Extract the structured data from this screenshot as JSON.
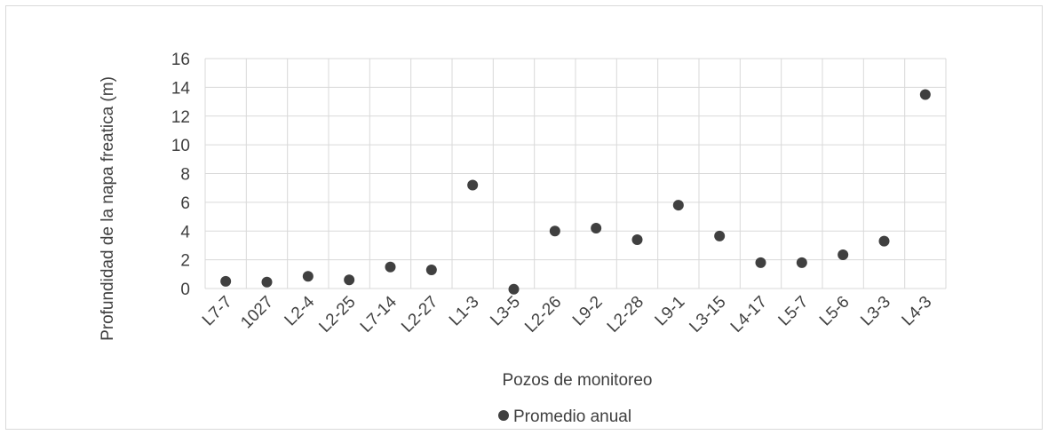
{
  "chart_data": {
    "type": "scatter",
    "title": "",
    "xlabel": "Pozos de monitoreo",
    "ylabel": "Profundidad de la napa freatica (m)",
    "ylim": [
      0,
      16
    ],
    "yticks": [
      0,
      2,
      4,
      6,
      8,
      10,
      12,
      14,
      16
    ],
    "grid": true,
    "legend_position": "bottom",
    "categories": [
      "L7-7",
      "1027",
      "L2-4",
      "L2-25",
      "L7-14",
      "L2-27",
      "L1-3",
      "L3-5",
      "L2-26",
      "L9-2",
      "L2-28",
      "L9-1",
      "L3-15",
      "L4-17",
      "L5-7",
      "L5-6",
      "L3-3",
      "L4-3"
    ],
    "series": [
      {
        "name": "Promedio anual",
        "color": "#404040",
        "values": [
          0.5,
          0.45,
          0.85,
          0.6,
          1.5,
          1.3,
          7.2,
          -0.05,
          4.0,
          4.2,
          3.4,
          5.8,
          3.65,
          1.8,
          1.8,
          2.35,
          3.3,
          13.5
        ]
      }
    ]
  }
}
